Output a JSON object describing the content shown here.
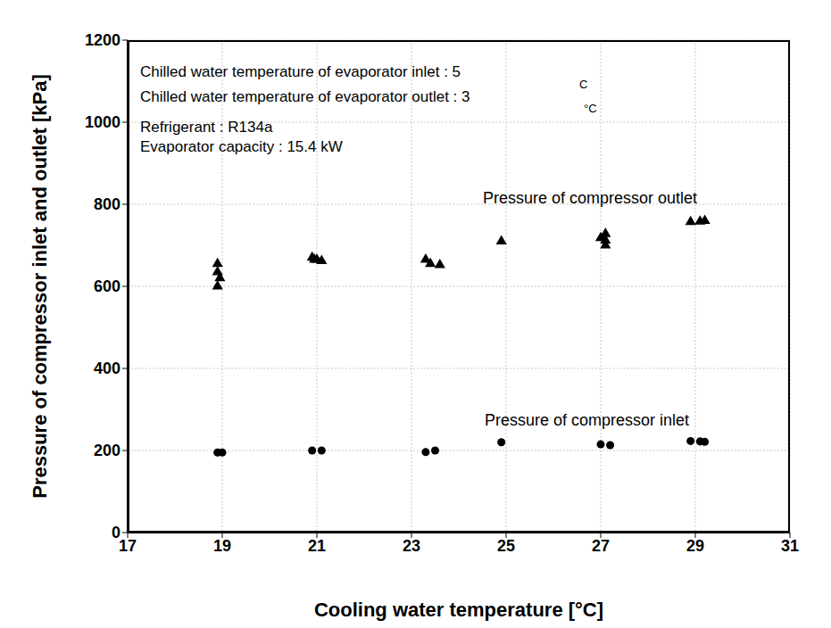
{
  "chart_data": {
    "type": "scatter",
    "x_label": "Cooling water temperature [°C]",
    "y_label": "Pressure of compressor inlet and outlet [kPa]",
    "annotations": [
      "Chilled water temperature of evaporator inlet : 5",
      "Chilled water temperature of evaporator outlet : 3",
      "Refrigerant : R134a",
      "Evaporator capacity : 15.4 kW",
      "C",
      "°C"
    ],
    "xlim": [
      17,
      31
    ],
    "xticks": [
      17,
      19,
      21,
      23,
      25,
      27,
      29,
      31
    ],
    "ylim": [
      0,
      1200
    ],
    "yticks": [
      0,
      200,
      400,
      600,
      800,
      1000,
      1200
    ],
    "grid": true,
    "series": [
      {
        "name": "Pressure of compressor outlet",
        "color": "#000000",
        "marker": "triangle",
        "x": [
          18.9,
          18.9,
          18.95,
          18.9,
          20.9,
          20.95,
          21.0,
          21.1,
          23.3,
          23.4,
          23.6,
          24.9,
          27.0,
          27.1,
          27.1,
          27.1,
          28.9,
          29.1,
          29.2
        ],
        "values": [
          655,
          635,
          620,
          600,
          670,
          665,
          665,
          662,
          665,
          655,
          652,
          710,
          718,
          728,
          712,
          700,
          757,
          758,
          760
        ]
      },
      {
        "name": "Pressure of compressor inlet",
        "color": "#000000",
        "marker": "circle",
        "x": [
          18.9,
          19.0,
          20.9,
          21.1,
          23.3,
          23.5,
          24.9,
          27.0,
          27.2,
          28.9,
          29.1,
          29.2
        ],
        "values": [
          195,
          195,
          200,
          200,
          196,
          200,
          220,
          215,
          213,
          223,
          222,
          221
        ]
      }
    ]
  }
}
